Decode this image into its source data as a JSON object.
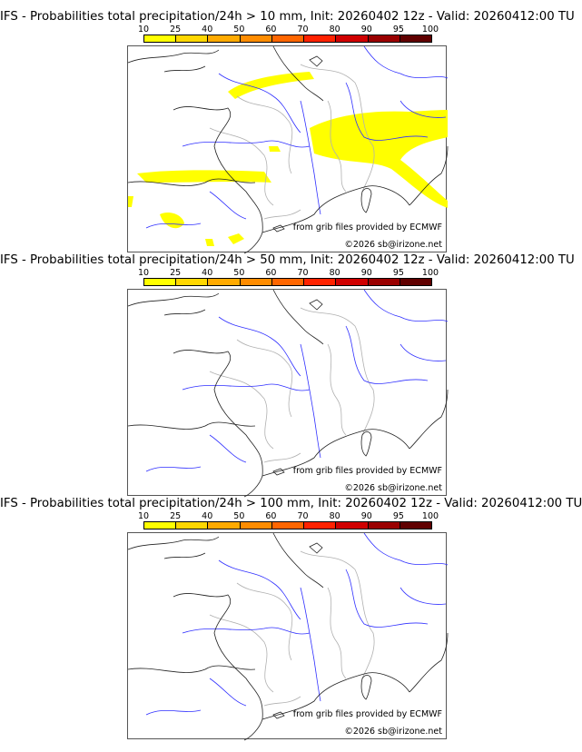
{
  "colorbar": {
    "ticks": [
      "10",
      "25",
      "40",
      "50",
      "60",
      "70",
      "80",
      "90",
      "95",
      "100"
    ],
    "colors": [
      "#ffff00",
      "#ffd700",
      "#ffaa00",
      "#ff8c00",
      "#ff6600",
      "#ff2200",
      "#d00000",
      "#9a0000",
      "#600000"
    ]
  },
  "panels": [
    {
      "title": "IFS - Probabilities total precipitation/24h > 10 mm, Init: 20260402 12z - Valid: 20260412:00 TU",
      "has_precip": true
    },
    {
      "title": "IFS - Probabilities total precipitation/24h > 50 mm, Init: 20260402 12z - Valid: 20260412:00 TU",
      "has_precip": false
    },
    {
      "title": "IFS - Probabilities total precipitation/24h > 100 mm, Init: 20260402 12z - Valid: 20260412:00 TU",
      "has_precip": false
    }
  ],
  "credits": {
    "source": "from grib files provided by ECMWF",
    "copyright": "©2026 sb@irizone.net"
  }
}
